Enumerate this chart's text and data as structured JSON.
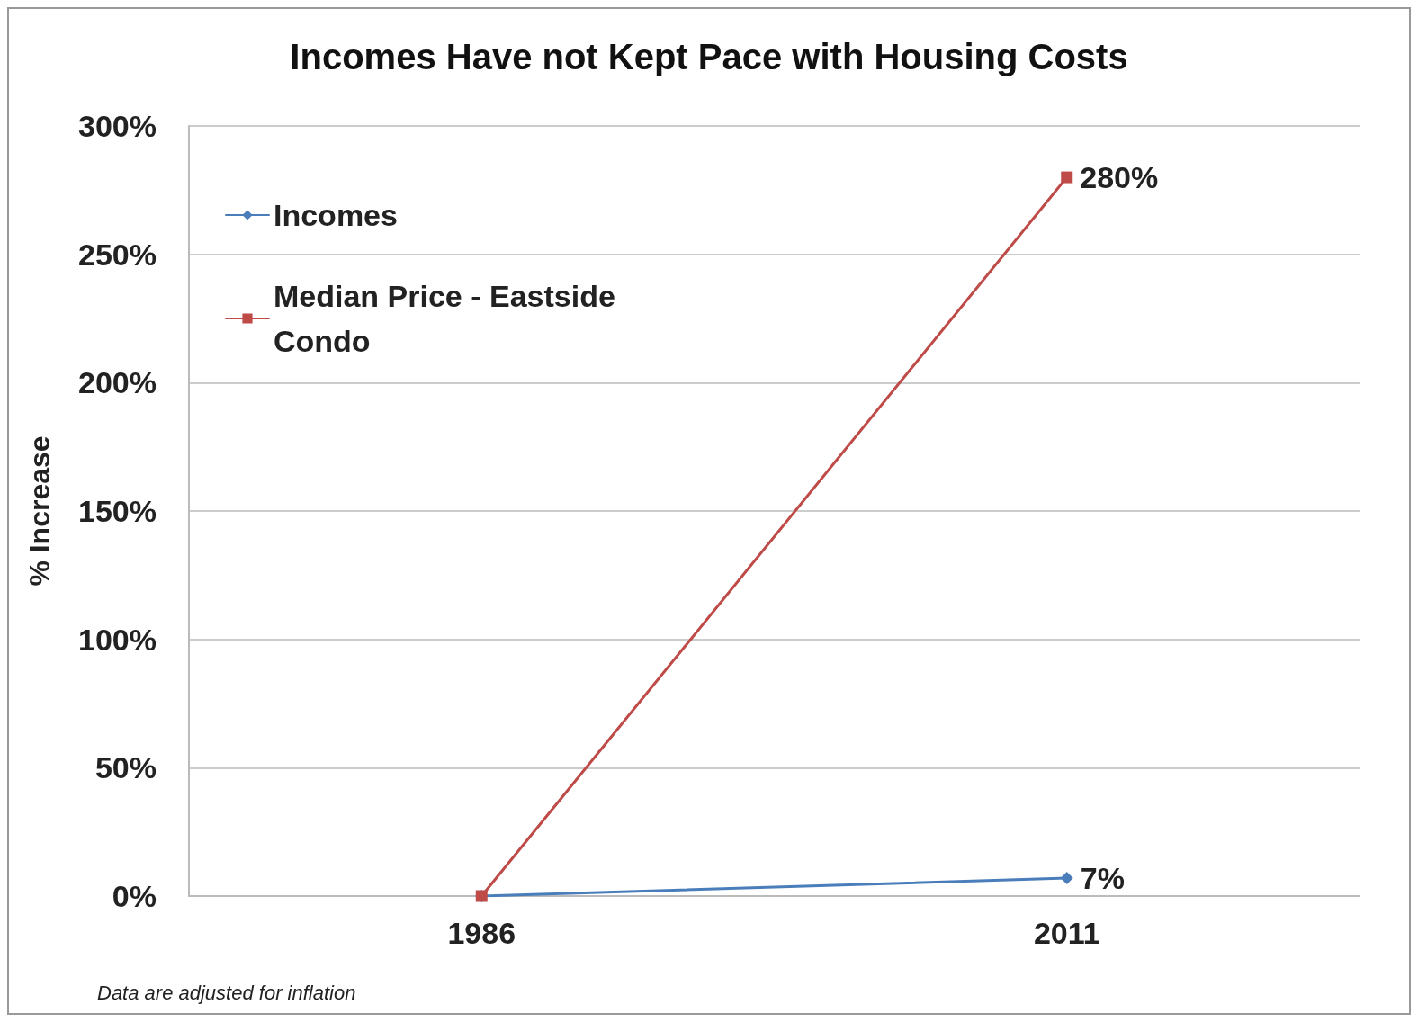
{
  "chart_data": {
    "type": "line",
    "title": "Incomes Have not Kept Pace with Housing Costs",
    "ylabel": "% Increase",
    "x": [
      1986,
      2011
    ],
    "xlim": [
      1973.5,
      2023.5
    ],
    "xticks": [
      1986,
      2011
    ],
    "series": [
      {
        "name": "Incomes",
        "color": "#4a7ebb",
        "values": [
          0,
          7
        ],
        "marker": "diamond",
        "value_labels": [
          null,
          "7%"
        ]
      },
      {
        "name": "Median Price - Eastside Condo",
        "color": "#be4b48",
        "values": [
          0,
          280
        ],
        "marker": "square",
        "value_labels": [
          null,
          "280%"
        ]
      }
    ],
    "ylim": [
      0,
      300
    ],
    "yticks": [
      {
        "value": 0,
        "label": "0%"
      },
      {
        "value": 50,
        "label": "50%"
      },
      {
        "value": 100,
        "label": "100%"
      },
      {
        "value": 150,
        "label": "150%"
      },
      {
        "value": 200,
        "label": "200%"
      },
      {
        "value": 250,
        "label": "250%"
      },
      {
        "value": 300,
        "label": "300%"
      }
    ],
    "grid": "y",
    "legend": "top left",
    "line_style": "solid",
    "annotations": [
      "Data are adjusted for inflation"
    ]
  }
}
